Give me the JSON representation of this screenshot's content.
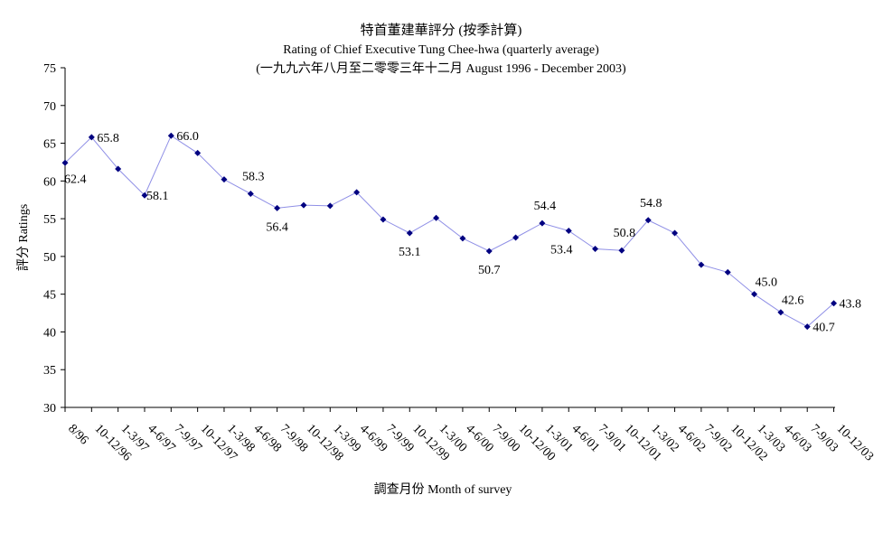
{
  "chart_data": {
    "type": "line",
    "title": "特首董建華評分 (按季計算)",
    "subtitle": "Rating of Chief Executive Tung Chee-hwa  (quarterly average)",
    "subtitle2": "(一九九六年八月至二零零三年十二月 August 1996 - December 2003)",
    "xlabel": "調查月份 Month of survey",
    "ylabel": "評分 Ratings",
    "ylim": [
      30,
      75
    ],
    "yticks": [
      30,
      35,
      40,
      45,
      50,
      55,
      60,
      65,
      70,
      75
    ],
    "grid": false,
    "colors": {
      "line": "#8f8fe6",
      "marker": "#000080"
    },
    "categories": [
      "8/96",
      "10-12/96",
      "1-3/97",
      "4-6/97",
      "7-9/97",
      "10-12/97",
      "1-3/98",
      "4-6/98",
      "7-9/98",
      "10-12/98",
      "1-3/99",
      "4-6/99",
      "7-9/99",
      "10-12/99",
      "1-3/00",
      "4-6/00",
      "7-9/00",
      "10-12/00",
      "1-3/01",
      "4-6/01",
      "7-9/01",
      "10-12/01",
      "1-3/02",
      "4-6/02",
      "7-9/02",
      "10-12/02",
      "1-3/03",
      "4-6/03",
      "7-9/03",
      "10-12/03"
    ],
    "values": [
      62.4,
      65.8,
      61.6,
      58.1,
      66.0,
      63.7,
      60.2,
      58.3,
      56.4,
      56.8,
      56.7,
      58.5,
      54.9,
      53.1,
      55.1,
      52.4,
      50.7,
      52.5,
      54.4,
      53.4,
      51.0,
      50.8,
      54.8,
      53.1,
      48.9,
      47.9,
      45.0,
      42.6,
      40.7,
      43.8
    ],
    "data_labels": [
      {
        "index": 0,
        "text": "62.4"
      },
      {
        "index": 1,
        "text": "65.8"
      },
      {
        "index": 3,
        "text": "58.1"
      },
      {
        "index": 4,
        "text": "66.0"
      },
      {
        "index": 7,
        "text": "58.3"
      },
      {
        "index": 8,
        "text": "56.4"
      },
      {
        "index": 13,
        "text": "53.1"
      },
      {
        "index": 16,
        "text": "50.7"
      },
      {
        "index": 18,
        "text": "54.4"
      },
      {
        "index": 19,
        "text": "53.4"
      },
      {
        "index": 21,
        "text": "50.8"
      },
      {
        "index": 22,
        "text": "54.8"
      },
      {
        "index": 26,
        "text": "45.0"
      },
      {
        "index": 27,
        "text": "42.6"
      },
      {
        "index": 28,
        "text": "40.7"
      },
      {
        "index": 29,
        "text": "43.8"
      }
    ]
  }
}
